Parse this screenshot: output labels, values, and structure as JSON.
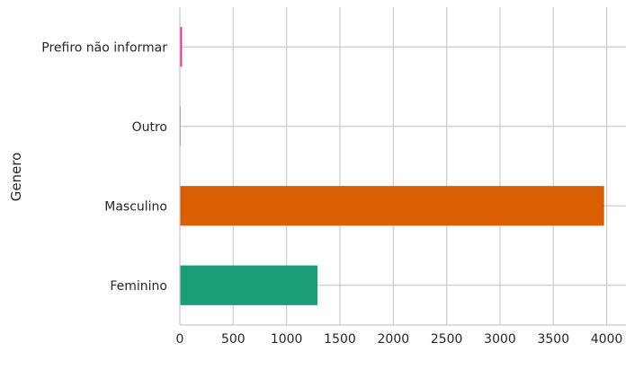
{
  "chart_data": {
    "type": "bar",
    "orientation": "horizontal",
    "categories": [
      "Feminino",
      "Masculino",
      "Outro",
      "Prefiro não informar"
    ],
    "values": [
      1290,
      3975,
      4,
      20
    ],
    "colors": [
      "#1b9e77",
      "#d95f02",
      "#7570b3",
      "#e7298a"
    ],
    "ylabel": "Genero",
    "xlabel": "",
    "xlim": [
      0,
      4180
    ],
    "xticks": [
      0,
      500,
      1000,
      1500,
      2000,
      2500,
      3000,
      3500,
      4000
    ],
    "grid": true,
    "legend": "none"
  }
}
